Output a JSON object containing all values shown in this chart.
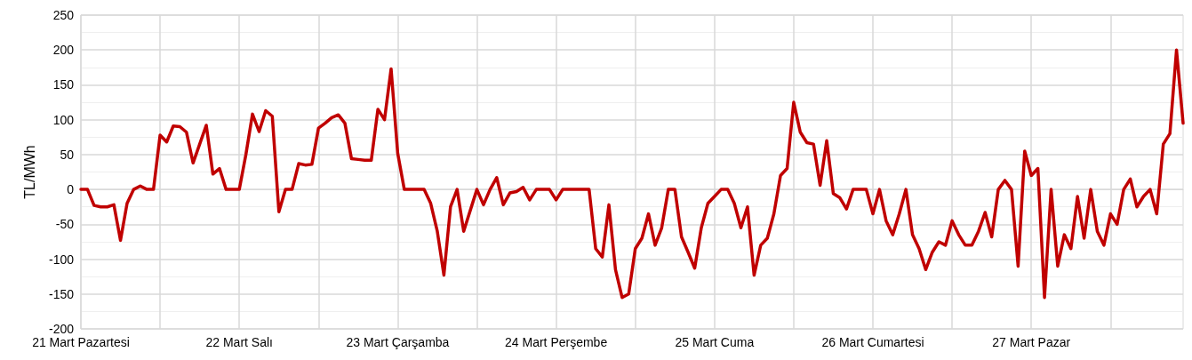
{
  "chart_data": {
    "type": "line",
    "ylabel": "TL/MWh",
    "categories": [
      "21 Mart Pazartesi",
      null,
      null,
      null,
      null,
      null,
      null,
      null,
      null,
      null,
      null,
      null,
      null,
      null,
      null,
      null,
      null,
      null,
      null,
      null,
      null,
      null,
      null,
      null,
      "22 Mart Salı",
      null,
      null,
      null,
      null,
      null,
      null,
      null,
      null,
      null,
      null,
      null,
      null,
      null,
      null,
      null,
      null,
      null,
      null,
      null,
      null,
      null,
      null,
      null,
      "23 Mart Çarşamba",
      null,
      null,
      null,
      null,
      null,
      null,
      null,
      null,
      null,
      null,
      null,
      null,
      null,
      null,
      null,
      null,
      null,
      null,
      null,
      null,
      null,
      null,
      null,
      "24 Mart Perşembe",
      null,
      null,
      null,
      null,
      null,
      null,
      null,
      null,
      null,
      null,
      null,
      null,
      null,
      null,
      null,
      null,
      null,
      null,
      null,
      null,
      null,
      null,
      null,
      "25 Mart Cuma",
      null,
      null,
      null,
      null,
      null,
      null,
      null,
      null,
      null,
      null,
      null,
      null,
      null,
      null,
      null,
      null,
      null,
      null,
      null,
      null,
      null,
      null,
      null,
      "26 Mart Cumartesi",
      null,
      null,
      null,
      null,
      null,
      null,
      null,
      null,
      null,
      null,
      null,
      null,
      null,
      null,
      null,
      null,
      null,
      null,
      null,
      null,
      null,
      null,
      null,
      "27 Mart Pazar",
      null,
      null,
      null,
      null,
      null,
      null,
      null,
      null,
      null,
      null,
      null,
      null,
      null,
      null,
      null,
      null,
      null,
      null,
      null,
      null,
      null,
      null,
      null
    ],
    "series": [
      {
        "color": "#c00000",
        "values": [
          0,
          0,
          -23,
          -25,
          -25,
          -22,
          -73,
          -20,
          0,
          5,
          0,
          0,
          78,
          68,
          91,
          90,
          82,
          38,
          65,
          92,
          22,
          30,
          0,
          0,
          0,
          50,
          108,
          83,
          113,
          105,
          -32,
          0,
          0,
          37,
          35,
          36,
          88,
          95,
          103,
          107,
          95,
          44,
          43,
          42,
          42,
          115,
          100,
          173,
          52,
          0,
          0,
          0,
          0,
          -20,
          -60,
          -123,
          -25,
          0,
          -60,
          -30,
          0,
          -22,
          0,
          17,
          -22,
          -5,
          -3,
          3,
          -15,
          0,
          0,
          0,
          -15,
          0,
          0,
          0,
          0,
          0,
          -85,
          -97,
          -22,
          -115,
          -155,
          -150,
          -85,
          -70,
          -35,
          -80,
          -55,
          0,
          0,
          -68,
          -90,
          -113,
          -55,
          -20,
          -10,
          0,
          0,
          -20,
          -55,
          -25,
          -123,
          -80,
          -70,
          -35,
          20,
          30,
          125,
          82,
          67,
          65,
          6,
          70,
          -6,
          -12,
          -28,
          0,
          0,
          0,
          -35,
          0,
          -45,
          -65,
          -35,
          0,
          -65,
          -85,
          -115,
          -90,
          -75,
          -80,
          -45,
          -65,
          -80,
          -80,
          -60,
          -33,
          -68,
          0,
          13,
          0,
          -110,
          55,
          20,
          30,
          -155,
          0,
          -110,
          -65,
          -85,
          -10,
          -70,
          0,
          -60,
          -80,
          -35,
          -50,
          0,
          15,
          -25,
          -10,
          0,
          -35,
          65,
          80,
          200,
          95
        ]
      }
    ],
    "ylim": [
      -200,
      250
    ],
    "yticks": [
      -200,
      -150,
      -100,
      -50,
      0,
      50,
      100,
      150,
      200,
      250
    ],
    "grid": true,
    "marker": "none",
    "line_style": "solid"
  }
}
